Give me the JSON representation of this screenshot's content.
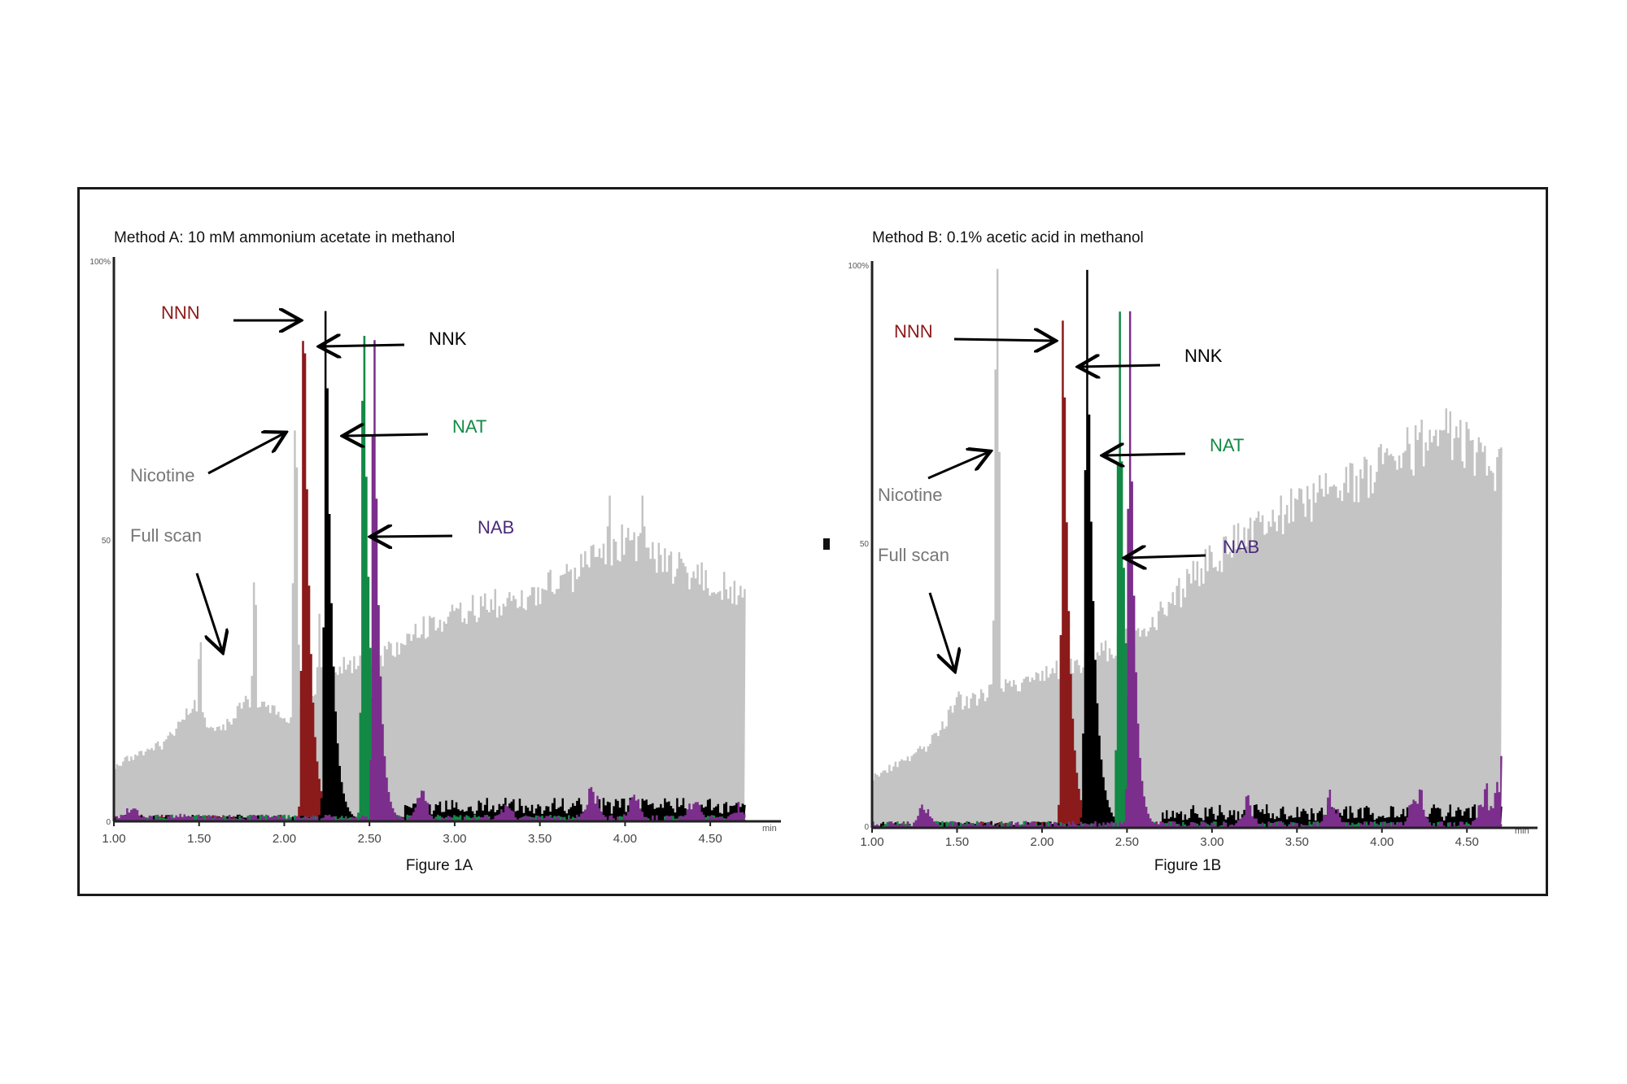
{
  "chart_data": [
    {
      "type": "area",
      "title": "Method A: 10  mM ammonium acetate in methanol",
      "caption": "Figure 1A",
      "xlabel": "",
      "ylabel": "",
      "xlim": [
        1.0,
        4.7
      ],
      "ylim": [
        0,
        100
      ],
      "x_ticks": [
        "1.00",
        "1.50",
        "2.00",
        "2.50",
        "3.00",
        "3.50",
        "4.00",
        "4.50"
      ],
      "x_unit": "min",
      "y_ticks": [
        "100%",
        "50",
        "0"
      ],
      "series": [
        {
          "name": "Full scan",
          "color": "#c4c4c4",
          "baseline": {
            "x": [
              1.0,
              1.3,
              1.45,
              1.6,
              1.8,
              2.0,
              2.3,
              2.5,
              2.8,
              3.1,
              3.4,
              3.7,
              4.0,
              4.3,
              4.7
            ],
            "y": [
              10,
              14,
              21,
              16,
              22,
              18,
              28,
              28,
              34,
              38,
              40,
              44,
              50,
              45,
              40
            ]
          },
          "peaks": [
            {
              "x": 1.5,
              "y": 33
            },
            {
              "x": 1.82,
              "y": 44
            },
            {
              "x": 2.06,
              "y": 72
            },
            {
              "x": 2.2,
              "y": 37
            },
            {
              "x": 3.9,
              "y": 60
            },
            {
              "x": 4.1,
              "y": 60
            }
          ]
        },
        {
          "name": "NNN",
          "color": "#8b1a1a",
          "peak_x": 2.11,
          "peak_y": 99,
          "width": 0.035
        },
        {
          "name": "NNK",
          "color": "#000000",
          "peak_x": 2.24,
          "peak_y": 97,
          "width": 0.035
        },
        {
          "name": "NAT",
          "color": "#128a45",
          "peak_x": 2.46,
          "peak_y": 97,
          "width": 0.035
        },
        {
          "name": "NAB",
          "color": "#7b2e8c",
          "peak_x": 2.52,
          "peak_y": 98,
          "width": 0.03,
          "noise": [
            {
              "x": 1.1,
              "y": 3
            },
            {
              "x": 1.4,
              "y": 1.5
            },
            {
              "x": 2.8,
              "y": 5
            },
            {
              "x": 3.3,
              "y": 3
            },
            {
              "x": 3.8,
              "y": 6
            },
            {
              "x": 4.05,
              "y": 5
            },
            {
              "x": 4.4,
              "y": 4
            },
            {
              "x": 4.65,
              "y": 3
            }
          ]
        }
      ],
      "annotations": [
        {
          "text": "NNN",
          "color": "#8b1a1a"
        },
        {
          "text": "NNK",
          "color": "#000000"
        },
        {
          "text": "NAT",
          "color": "#128a45"
        },
        {
          "text": "NAB",
          "color": "#4b2a7a"
        },
        {
          "text": "Nicotine",
          "color": "#777777"
        },
        {
          "text": "Full scan",
          "color": "#777777"
        }
      ]
    },
    {
      "type": "area",
      "title": "Method B: 0.1% acetic acid in methanol",
      "caption": "Figure 1B",
      "xlabel": "",
      "ylabel": "",
      "xlim": [
        1.0,
        4.7
      ],
      "ylim": [
        0,
        100
      ],
      "x_ticks": [
        "1.00",
        "1.50",
        "2.00",
        "2.50",
        "3.00",
        "3.50",
        "4.00",
        "4.50"
      ],
      "x_unit": "min",
      "y_ticks": [
        "100%",
        "50",
        "0"
      ],
      "series": [
        {
          "name": "Full scan",
          "color": "#c4c4c4",
          "baseline": {
            "x": [
              1.0,
              1.3,
              1.5,
              1.8,
              2.0,
              2.3,
              2.6,
              2.9,
              3.2,
              3.5,
              3.8,
              4.1,
              4.4,
              4.7
            ],
            "y": [
              9,
              14,
              22,
              25,
              27,
              30,
              35,
              45,
              52,
              57,
              61,
              66,
              70,
              63
            ]
          },
          "peaks": [
            {
              "x": 1.5,
              "y": 25
            },
            {
              "x": 1.73,
              "y": 100
            },
            {
              "x": 3.9,
              "y": 65
            }
          ]
        },
        {
          "name": "NNN",
          "color": "#8b1a1a",
          "peak_x": 2.12,
          "peak_y": 96,
          "width": 0.035
        },
        {
          "name": "NNK",
          "color": "#000000",
          "peak_x": 2.26,
          "peak_y": 99,
          "width": 0.04
        },
        {
          "name": "NAT",
          "color": "#128a45",
          "peak_x": 2.45,
          "peak_y": 97,
          "width": 0.035
        },
        {
          "name": "NAB",
          "color": "#7b2e8c",
          "peak_x": 2.51,
          "peak_y": 98,
          "width": 0.03,
          "noise": [
            {
              "x": 1.3,
              "y": 4
            },
            {
              "x": 3.2,
              "y": 5
            },
            {
              "x": 3.7,
              "y": 6
            },
            {
              "x": 4.2,
              "y": 8
            },
            {
              "x": 4.6,
              "y": 7
            },
            {
              "x": 4.7,
              "y": 11
            }
          ]
        }
      ],
      "annotations": [
        {
          "text": "NNN",
          "color": "#8b1a1a"
        },
        {
          "text": "NNK",
          "color": "#000000"
        },
        {
          "text": "NAT",
          "color": "#128a45"
        },
        {
          "text": "NAB",
          "color": "#4b2a7a"
        },
        {
          "text": "Nicotine",
          "color": "#777777"
        },
        {
          "text": "Full scan",
          "color": "#777777"
        }
      ]
    }
  ]
}
